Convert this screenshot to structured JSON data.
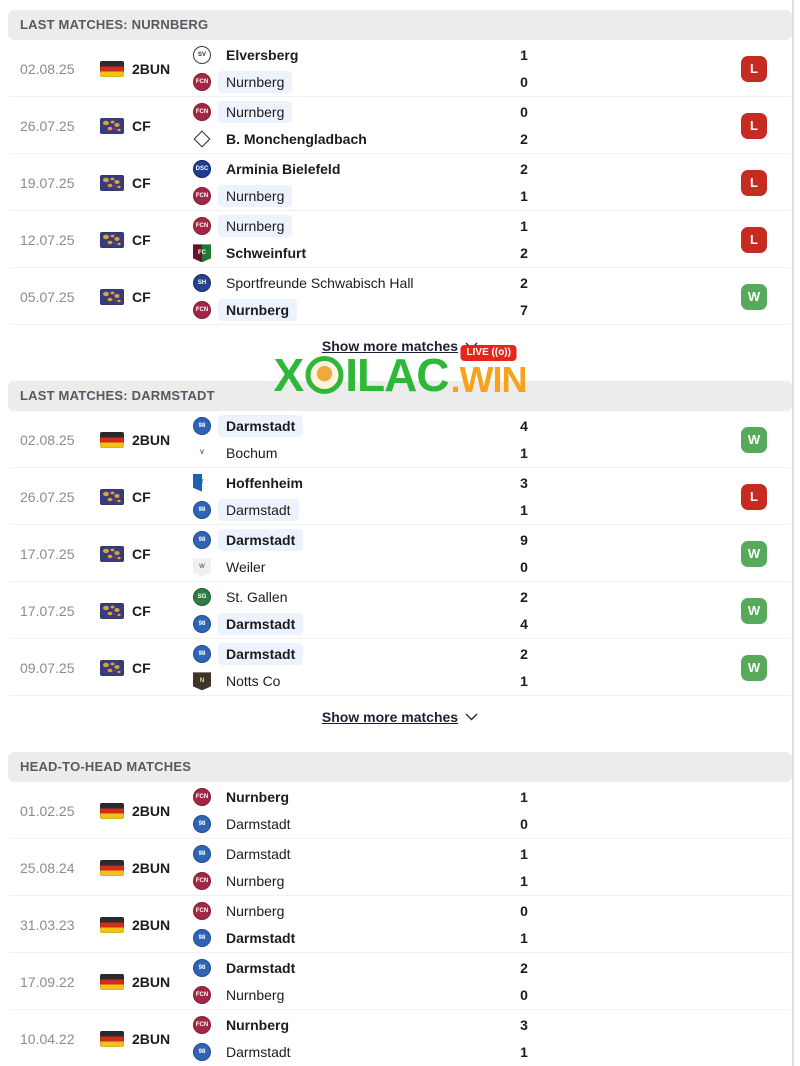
{
  "show_more_label": "Show more matches",
  "site_logo": {
    "brand": "XOILAC.WIN",
    "part1": "X",
    "part2": "ILAC",
    "suffix": ".WIN",
    "live_label": "LIVE",
    "live_icon": "((o))"
  },
  "colors": {
    "win": "#57a95b",
    "loss": "#c62b22",
    "focus_highlight": "#ecf3fc",
    "header_bg": "#ececec",
    "brand_green": "#2fb838",
    "brand_orange": "#f6a21c",
    "live_red": "#e6261d"
  },
  "logos": {
    "elversberg": {
      "shape": "circle",
      "bg": "#ffffff",
      "border": "#3a3a3a",
      "fg": "#2b2b2b",
      "glyph": "SV"
    },
    "nurnberg": {
      "shape": "circle",
      "bg": "#a12744",
      "border": "#811e33",
      "fg": "#ffffff",
      "glyph": "FCN"
    },
    "mgladbach": {
      "shape": "diamond",
      "bg": "#ffffff",
      "border": "#222222",
      "fg": "#111111",
      "glyph": ""
    },
    "bielefeld": {
      "shape": "circle",
      "bg": "#1c3f94",
      "border": "#12255c",
      "fg": "#ffffff",
      "glyph": "DSC"
    },
    "schweinfurt": {
      "shape": "shield",
      "bg": "#6b1326",
      "bg2": "#1e7a33",
      "border": "#3c0f1c",
      "fg": "#ffffff",
      "glyph": "FC"
    },
    "schwabischhall": {
      "shape": "circle",
      "bg": "#27418f",
      "border": "#1b2d66",
      "fg": "#ffffff",
      "glyph": "SH"
    },
    "darmstadt": {
      "shape": "circle",
      "bg": "#2f63b5",
      "border": "#1f4a92",
      "fg": "#ffffff",
      "glyph": "98"
    },
    "bochum": {
      "shape": "shield",
      "bg": "#ffffff",
      "border": "#2d55a5",
      "fg": "#2d55a5",
      "glyph": "V"
    },
    "hoffenheim": {
      "shape": "shield",
      "bg": "#1a63b4",
      "bg2": "#ffffff",
      "border": "#11447e",
      "fg": "#1a63b4",
      "glyph": "T"
    },
    "weiler": {
      "shape": "shield",
      "bg": "#f0f0f0",
      "border": "#8a8a8a",
      "fg": "#777777",
      "glyph": "W"
    },
    "stgallen": {
      "shape": "circle",
      "bg": "#2f7d46",
      "border": "#225c33",
      "fg": "#ffffff",
      "glyph": "SG"
    },
    "nottsco": {
      "shape": "shield",
      "bg": "#3e3427",
      "border": "#261f14",
      "fg": "#e8d9a0",
      "glyph": "N"
    }
  },
  "sections": [
    {
      "id": "last-matches-nurnberg",
      "title": "LAST MATCHES: NURNBERG",
      "show_more": true,
      "matches": [
        {
          "date": "02.08.25",
          "flag": "de",
          "competition": "2BUN",
          "result": "L",
          "teams": [
            {
              "name": "Elversberg",
              "score": "1",
              "bold": true,
              "highlight": false,
              "logo": "elversberg"
            },
            {
              "name": "Nurnberg",
              "score": "0",
              "bold": false,
              "highlight": true,
              "logo": "nurnberg"
            }
          ]
        },
        {
          "date": "26.07.25",
          "flag": "world",
          "competition": "CF",
          "result": "L",
          "teams": [
            {
              "name": "Nurnberg",
              "score": "0",
              "bold": false,
              "highlight": true,
              "logo": "nurnberg"
            },
            {
              "name": "B. Monchengladbach",
              "score": "2",
              "bold": true,
              "highlight": false,
              "logo": "mgladbach"
            }
          ]
        },
        {
          "date": "19.07.25",
          "flag": "world",
          "competition": "CF",
          "result": "L",
          "teams": [
            {
              "name": "Arminia Bielefeld",
              "score": "2",
              "bold": true,
              "highlight": false,
              "logo": "bielefeld"
            },
            {
              "name": "Nurnberg",
              "score": "1",
              "bold": false,
              "highlight": true,
              "logo": "nurnberg"
            }
          ]
        },
        {
          "date": "12.07.25",
          "flag": "world",
          "competition": "CF",
          "result": "L",
          "teams": [
            {
              "name": "Nurnberg",
              "score": "1",
              "bold": false,
              "highlight": true,
              "logo": "nurnberg"
            },
            {
              "name": "Schweinfurt",
              "score": "2",
              "bold": true,
              "highlight": false,
              "logo": "schweinfurt"
            }
          ]
        },
        {
          "date": "05.07.25",
          "flag": "world",
          "competition": "CF",
          "result": "W",
          "teams": [
            {
              "name": "Sportfreunde Schwabisch Hall",
              "score": "2",
              "bold": false,
              "highlight": false,
              "logo": "schwabischhall"
            },
            {
              "name": "Nurnberg",
              "score": "7",
              "bold": true,
              "highlight": true,
              "logo": "nurnberg"
            }
          ]
        }
      ]
    },
    {
      "id": "last-matches-darmstadt",
      "title": "LAST MATCHES: DARMSTADT",
      "show_more": true,
      "matches": [
        {
          "date": "02.08.25",
          "flag": "de",
          "competition": "2BUN",
          "result": "W",
          "teams": [
            {
              "name": "Darmstadt",
              "score": "4",
              "bold": true,
              "highlight": true,
              "logo": "darmstadt"
            },
            {
              "name": "Bochum",
              "score": "1",
              "bold": false,
              "highlight": false,
              "logo": "bochum"
            }
          ]
        },
        {
          "date": "26.07.25",
          "flag": "world",
          "competition": "CF",
          "result": "L",
          "teams": [
            {
              "name": "Hoffenheim",
              "score": "3",
              "bold": true,
              "highlight": false,
              "logo": "hoffenheim"
            },
            {
              "name": "Darmstadt",
              "score": "1",
              "bold": false,
              "highlight": true,
              "logo": "darmstadt"
            }
          ]
        },
        {
          "date": "17.07.25",
          "flag": "world",
          "competition": "CF",
          "result": "W",
          "teams": [
            {
              "name": "Darmstadt",
              "score": "9",
              "bold": true,
              "highlight": true,
              "logo": "darmstadt"
            },
            {
              "name": "Weiler",
              "score": "0",
              "bold": false,
              "highlight": false,
              "logo": "weiler"
            }
          ]
        },
        {
          "date": "17.07.25",
          "flag": "world",
          "competition": "CF",
          "result": "W",
          "teams": [
            {
              "name": "St. Gallen",
              "score": "2",
              "bold": false,
              "highlight": false,
              "logo": "stgallen"
            },
            {
              "name": "Darmstadt",
              "score": "4",
              "bold": true,
              "highlight": true,
              "logo": "darmstadt"
            }
          ]
        },
        {
          "date": "09.07.25",
          "flag": "world",
          "competition": "CF",
          "result": "W",
          "teams": [
            {
              "name": "Darmstadt",
              "score": "2",
              "bold": true,
              "highlight": true,
              "logo": "darmstadt"
            },
            {
              "name": "Notts Co",
              "score": "1",
              "bold": false,
              "highlight": false,
              "logo": "nottsco"
            }
          ]
        }
      ]
    },
    {
      "id": "head-to-head",
      "title": "HEAD-TO-HEAD MATCHES",
      "show_more": false,
      "matches": [
        {
          "date": "01.02.25",
          "flag": "de",
          "competition": "2BUN",
          "result": null,
          "teams": [
            {
              "name": "Nurnberg",
              "score": "1",
              "bold": true,
              "highlight": false,
              "logo": "nurnberg"
            },
            {
              "name": "Darmstadt",
              "score": "0",
              "bold": false,
              "highlight": false,
              "logo": "darmstadt"
            }
          ]
        },
        {
          "date": "25.08.24",
          "flag": "de",
          "competition": "2BUN",
          "result": null,
          "teams": [
            {
              "name": "Darmstadt",
              "score": "1",
              "bold": false,
              "highlight": false,
              "logo": "darmstadt"
            },
            {
              "name": "Nurnberg",
              "score": "1",
              "bold": false,
              "highlight": false,
              "logo": "nurnberg"
            }
          ]
        },
        {
          "date": "31.03.23",
          "flag": "de",
          "competition": "2BUN",
          "result": null,
          "teams": [
            {
              "name": "Nurnberg",
              "score": "0",
              "bold": false,
              "highlight": false,
              "logo": "nurnberg"
            },
            {
              "name": "Darmstadt",
              "score": "1",
              "bold": true,
              "highlight": false,
              "logo": "darmstadt"
            }
          ]
        },
        {
          "date": "17.09.22",
          "flag": "de",
          "competition": "2BUN",
          "result": null,
          "teams": [
            {
              "name": "Darmstadt",
              "score": "2",
              "bold": true,
              "highlight": false,
              "logo": "darmstadt"
            },
            {
              "name": "Nurnberg",
              "score": "0",
              "bold": false,
              "highlight": false,
              "logo": "nurnberg"
            }
          ]
        },
        {
          "date": "10.04.22",
          "flag": "de",
          "competition": "2BUN",
          "result": null,
          "teams": [
            {
              "name": "Nurnberg",
              "score": "3",
              "bold": true,
              "highlight": false,
              "logo": "nurnberg"
            },
            {
              "name": "Darmstadt",
              "score": "1",
              "bold": false,
              "highlight": false,
              "logo": "darmstadt"
            }
          ]
        }
      ]
    }
  ]
}
